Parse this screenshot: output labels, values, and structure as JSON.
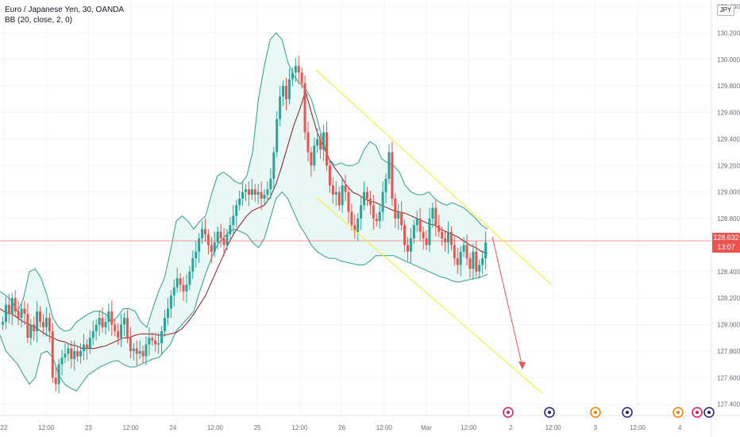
{
  "legend": {
    "symbol": "Euro / Japanese Yen, 30, OANDA",
    "indicator": "BB (20, close, 2, 0)"
  },
  "currency": "JPY",
  "last_price": {
    "value": "128.632",
    "countdown": "13:07"
  },
  "colors": {
    "up": "#26a69a",
    "down": "#ef5350",
    "band": "#2e9e8a",
    "band_fill": "#e0f4f1",
    "basis": "#8b1c1c",
    "channel": "#f5ef4a",
    "arrow": "#ef5350",
    "grid": "#f0f3fa",
    "price_line": "#ef5350"
  },
  "chart_data": {
    "type": "candlestick",
    "title": "Euro / Japanese Yen, 30, OANDA",
    "indicator": "BB (20, close, 2, 0)",
    "ylim": [
      127.35,
      130.42
    ],
    "y_ticks": [
      "130.400",
      "130.200",
      "130.000",
      "129.800",
      "129.600",
      "129.400",
      "129.200",
      "129.000",
      "128.800",
      "128.600",
      "128.400",
      "128.200",
      "128.000",
      "127.800",
      "127.600",
      "127.400"
    ],
    "x_ticks": [
      "22",
      "12:00",
      "23",
      "12:00",
      "24",
      "12:00",
      "25",
      "12:00",
      "26",
      "12:00",
      "Mar",
      "12:00",
      "2",
      "12:00",
      "3",
      "12:00",
      "4"
    ],
    "candles": [
      128.02,
      128.15,
      128.08,
      128.2,
      128.1,
      128.05,
      128.12,
      128.08,
      127.9,
      128.0,
      127.95,
      128.1,
      128.02,
      127.98,
      128.05,
      127.95,
      127.6,
      127.55,
      127.7,
      127.75,
      127.78,
      127.82,
      127.74,
      127.8,
      127.76,
      127.8,
      127.85,
      127.82,
      127.9,
      127.95,
      128.0,
      128.05,
      127.98,
      128.02,
      128.1,
      128.0,
      127.95,
      127.9,
      128.0,
      128.05,
      127.9,
      127.8,
      127.82,
      127.78,
      127.8,
      127.76,
      127.85,
      127.9,
      127.88,
      127.85,
      127.86,
      127.95,
      128.05,
      128.12,
      128.22,
      128.28,
      128.35,
      128.3,
      128.25,
      128.3,
      128.4,
      128.5,
      128.55,
      128.65,
      128.72,
      128.68,
      128.6,
      128.55,
      128.62,
      128.7,
      128.65,
      128.6,
      128.68,
      128.75,
      128.82,
      128.9,
      128.95,
      129.0,
      129.02,
      128.98,
      129.02,
      128.98,
      129.0,
      128.95,
      128.98,
      129.02,
      129.1,
      129.3,
      129.55,
      129.72,
      129.8,
      129.7,
      129.85,
      129.9,
      129.95,
      129.9,
      129.82,
      129.45,
      129.3,
      129.2,
      129.35,
      129.4,
      129.32,
      129.45,
      129.2,
      129.05,
      128.98,
      129.0,
      128.9,
      129.05,
      129.0,
      128.85,
      128.75,
      128.7,
      128.8,
      128.9,
      129.0,
      128.95,
      128.9,
      128.8,
      128.78,
      128.85,
      129.0,
      129.1,
      129.3,
      128.95,
      128.8,
      128.85,
      128.75,
      128.6,
      128.55,
      128.65,
      128.75,
      128.8,
      128.7,
      128.65,
      128.6,
      128.8,
      128.88,
      128.75,
      128.7,
      128.65,
      128.62,
      128.7,
      128.6,
      128.5,
      128.45,
      128.55,
      128.6,
      128.5,
      128.42,
      128.55,
      128.4,
      128.45,
      128.5,
      128.62
    ],
    "bb_basis": [
      128.12,
      128.09,
      128.08,
      128.05,
      128.02,
      128.0,
      127.98,
      127.95,
      127.92,
      127.9,
      127.88,
      127.87,
      127.85,
      127.84,
      127.82,
      127.82,
      127.82,
      127.83,
      127.84,
      127.86,
      127.88,
      127.9,
      127.9,
      127.92,
      127.93,
      127.93,
      127.93,
      127.92,
      127.92,
      127.93,
      127.94,
      127.97,
      128.02,
      128.08,
      128.15,
      128.22,
      128.32,
      128.42,
      128.52,
      128.62,
      128.7,
      128.76,
      128.82,
      128.86,
      128.88,
      128.9,
      128.96,
      129.06,
      129.2,
      129.35,
      129.5,
      129.62,
      129.76,
      129.6,
      129.45,
      129.35,
      129.25,
      129.18,
      129.12,
      129.05,
      129.0,
      128.98,
      128.95,
      128.93,
      128.92,
      128.9,
      128.88,
      128.86,
      128.85,
      128.84,
      128.82,
      128.8,
      128.78,
      128.76,
      128.75,
      128.72,
      128.7,
      128.68,
      128.66,
      128.63,
      128.6,
      128.58,
      128.55,
      128.54
    ],
    "bb_upper": [
      128.25,
      128.22,
      128.18,
      128.1,
      128.2,
      128.4,
      128.42,
      128.35,
      128.22,
      128.05,
      127.98,
      127.95,
      127.96,
      128.02,
      128.05,
      128.08,
      128.1,
      128.1,
      128.08,
      128.02,
      128.06,
      128.12,
      128.12,
      128.1,
      128.02,
      127.98,
      128.12,
      128.25,
      128.35,
      128.55,
      128.78,
      128.82,
      128.78,
      128.72,
      128.78,
      128.82,
      128.98,
      129.12,
      129.15,
      129.12,
      129.08,
      129.06,
      129.12,
      129.3,
      129.7,
      129.95,
      130.15,
      130.2,
      130.15,
      129.98,
      129.88,
      129.82,
      129.78,
      129.7,
      129.55,
      129.38,
      129.25,
      129.2,
      129.22,
      129.2,
      129.2,
      129.22,
      129.32,
      129.38,
      129.35,
      129.25,
      129.22,
      129.2,
      129.15,
      129.05,
      129.0,
      128.98,
      128.98,
      129.0,
      128.95,
      128.92,
      128.9,
      128.92,
      128.9,
      128.88,
      128.84,
      128.8,
      128.75,
      128.72
    ],
    "bb_lower": [
      127.92,
      127.8,
      127.75,
      127.7,
      127.62,
      127.55,
      127.6,
      127.78,
      127.8,
      127.75,
      127.62,
      127.55,
      127.52,
      127.5,
      127.56,
      127.62,
      127.65,
      127.68,
      127.7,
      127.72,
      127.73,
      127.7,
      127.68,
      127.68,
      127.7,
      127.72,
      127.74,
      127.75,
      127.8,
      127.85,
      127.95,
      128.0,
      128.05,
      128.1,
      128.25,
      128.38,
      128.5,
      128.6,
      128.65,
      128.7,
      128.72,
      128.7,
      128.68,
      128.62,
      128.58,
      128.65,
      128.8,
      128.95,
      129.0,
      128.95,
      128.85,
      128.75,
      128.68,
      128.6,
      128.55,
      128.52,
      128.5,
      128.5,
      128.48,
      128.47,
      128.46,
      128.45,
      128.45,
      128.48,
      128.52,
      128.52,
      128.52,
      128.52,
      128.5,
      128.48,
      128.46,
      128.44,
      128.42,
      128.4,
      128.38,
      128.36,
      128.35,
      128.33,
      128.32,
      128.33,
      128.34,
      128.35,
      128.36,
      128.38
    ]
  }
}
